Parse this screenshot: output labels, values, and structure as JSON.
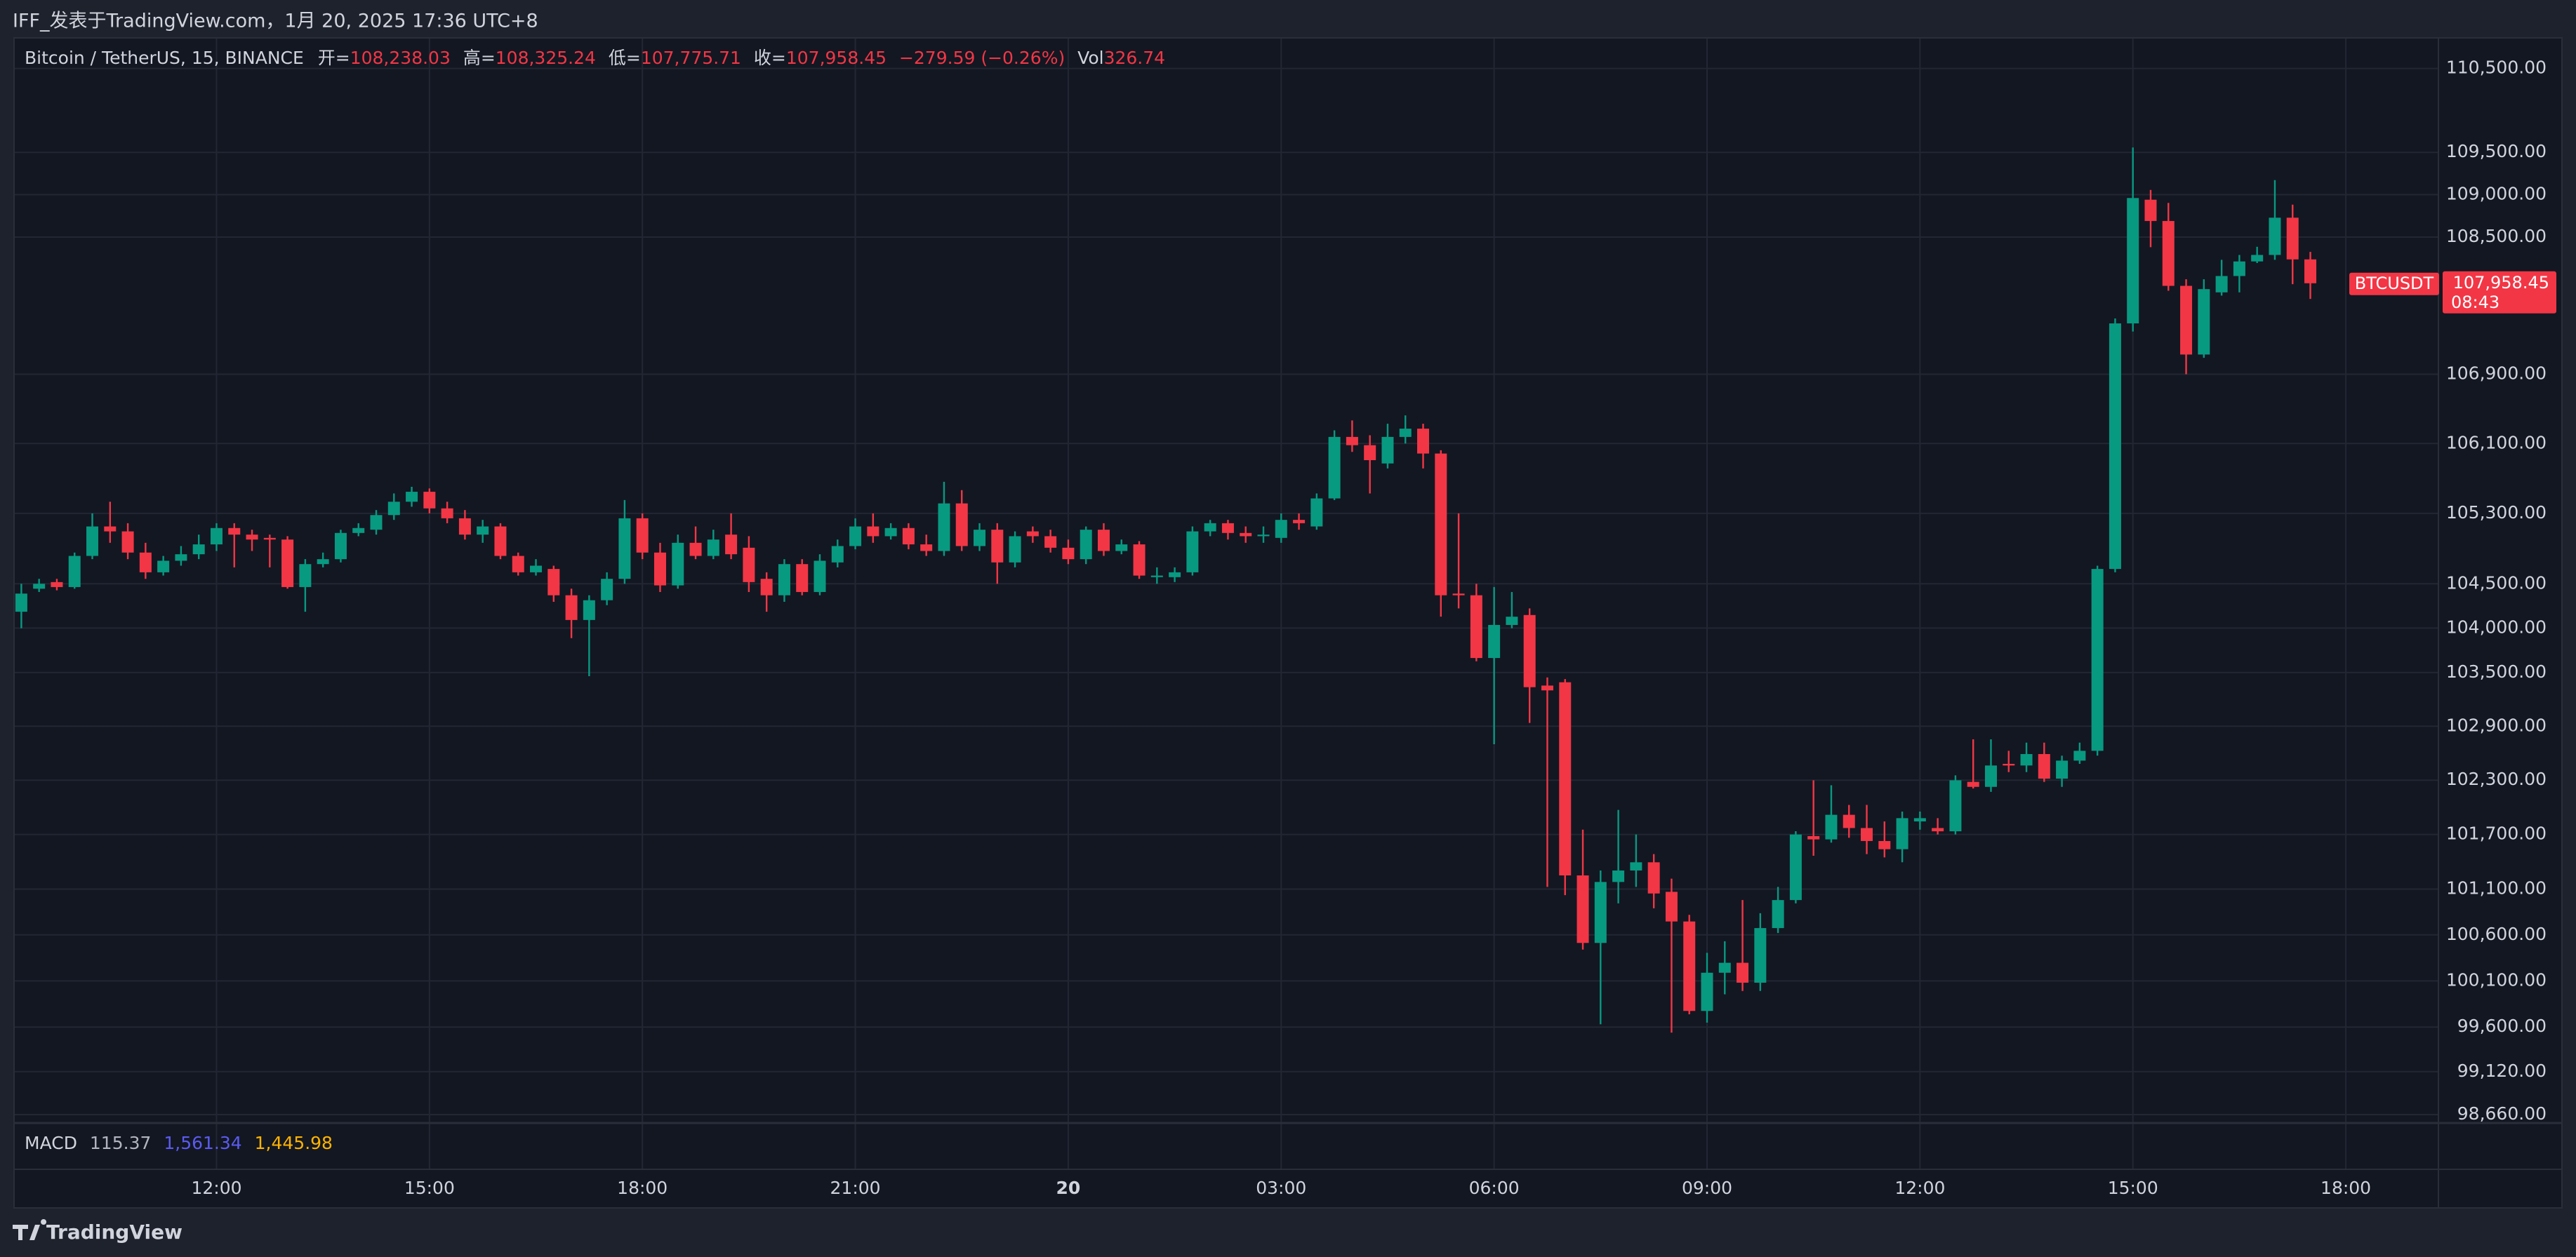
{
  "header": {
    "title": "IFF_发表于TradingView.com，1月 20, 2025 17:36 UTC+8"
  },
  "chart_data": {
    "type": "candlestick",
    "symbol": "Bitcoin / TetherUS, 15, BINANCE",
    "ohlc_labels": [
      {
        "key": "开=",
        "text": "108,238.03"
      },
      {
        "key": "高=",
        "text": "108,325.24"
      },
      {
        "key": "低=",
        "text": "107,775.71"
      },
      {
        "key": "收=",
        "text": "107,958.45"
      }
    ],
    "change": "−279.59 (−0.26%)",
    "volume": {
      "key": "Vol",
      "text": "326.74"
    },
    "up_color": "#089981",
    "down_color": "#f23645",
    "log_scale": true,
    "grid": true,
    "ylim": [
      98570,
      110850
    ],
    "yticks": [
      {
        "value": 110500,
        "label": "110,500.00"
      },
      {
        "value": 109500,
        "label": "109,500.00"
      },
      {
        "value": 109000,
        "label": "109,000.00"
      },
      {
        "value": 108500,
        "label": "108,500.00"
      },
      {
        "value": 106900,
        "label": "106,900.00"
      },
      {
        "value": 106100,
        "label": "106,100.00"
      },
      {
        "value": 105300,
        "label": "105,300.00"
      },
      {
        "value": 104500,
        "label": "104,500.00"
      },
      {
        "value": 104000,
        "label": "104,000.00"
      },
      {
        "value": 103500,
        "label": "103,500.00"
      },
      {
        "value": 102900,
        "label": "102,900.00"
      },
      {
        "value": 102300,
        "label": "102,300.00"
      },
      {
        "value": 101700,
        "label": "101,700.00"
      },
      {
        "value": 101100,
        "label": "101,100.00"
      },
      {
        "value": 100600,
        "label": "100,600.00"
      },
      {
        "value": 100100,
        "label": "100,100.00"
      },
      {
        "value": 99600,
        "label": "99,600.00"
      },
      {
        "value": 99120,
        "label": "99,120.00"
      },
      {
        "value": 98660,
        "label": "98,660.00"
      }
    ],
    "xticks": [
      {
        "value": "12:00",
        "label": "12:00"
      },
      {
        "value": "15:00",
        "label": "15:00"
      },
      {
        "value": "18:00",
        "label": "18:00"
      },
      {
        "value": "21:00",
        "label": "21:00"
      },
      {
        "value": "00:00",
        "label": "20"
      },
      {
        "value": "03:00",
        "label": "03:00"
      },
      {
        "value": "06:00",
        "label": "06:00"
      },
      {
        "value": "09:00",
        "label": "09:00"
      },
      {
        "value": "12:00",
        "label": "12:00"
      },
      {
        "value": "15:00",
        "label": "15:00"
      },
      {
        "value": "18:00",
        "label": "18:00"
      }
    ],
    "x": [
      "09:15",
      "09:30",
      "09:45",
      "10:00",
      "10:15",
      "10:30",
      "10:45",
      "11:00",
      "11:15",
      "11:30",
      "11:45",
      "12:00",
      "12:15",
      "12:30",
      "12:45",
      "13:00",
      "13:15",
      "13:30",
      "13:45",
      "14:00",
      "14:15",
      "14:30",
      "14:45",
      "15:00",
      "15:15",
      "15:30",
      "15:45",
      "16:00",
      "16:15",
      "16:30",
      "16:45",
      "17:00",
      "17:15",
      "17:30",
      "17:45",
      "18:00",
      "18:15",
      "18:30",
      "18:45",
      "19:00",
      "19:15",
      "19:30",
      "19:45",
      "20:00",
      "20:15",
      "20:30",
      "20:45",
      "21:00",
      "21:15",
      "21:30",
      "21:45",
      "22:00",
      "22:15",
      "22:30",
      "22:45",
      "23:00",
      "23:15",
      "23:30",
      "23:45",
      "00:00",
      "00:15",
      "00:30",
      "00:45",
      "01:00",
      "01:15",
      "01:30",
      "01:45",
      "02:00",
      "02:15",
      "02:30",
      "02:45",
      "03:00",
      "03:15",
      "03:30",
      "03:45",
      "04:00",
      "04:15",
      "04:30",
      "04:45",
      "05:00",
      "05:15",
      "05:30",
      "05:45",
      "06:00",
      "06:15",
      "06:30",
      "06:45",
      "07:00",
      "07:15",
      "07:30",
      "07:45",
      "08:00",
      "08:15",
      "08:30",
      "08:45",
      "09:00",
      "09:15",
      "09:30",
      "09:45",
      "10:00",
      "10:15",
      "10:30",
      "10:45",
      "11:00",
      "11:15",
      "11:30",
      "11:45",
      "12:00",
      "12:15",
      "12:30",
      "12:45",
      "13:00",
      "13:15",
      "13:30",
      "13:45",
      "14:00",
      "14:15",
      "14:30",
      "14:45",
      "15:00",
      "15:15",
      "15:30",
      "15:45",
      "16:00",
      "16:15",
      "16:30",
      "16:45",
      "17:00",
      "17:15",
      "17:30"
    ],
    "open": [
      104184,
      104444,
      104519,
      104463,
      104816,
      105151,
      105095,
      104854,
      104630,
      104761,
      104835,
      104947,
      105133,
      105058,
      105021,
      105002,
      104463,
      104723,
      104779,
      105077,
      105114,
      105281,
      105433,
      105547,
      105357,
      105244,
      105058,
      105151,
      104816,
      104630,
      104668,
      104370,
      104091,
      104314,
      104556,
      105244,
      104854,
      104482,
      104965,
      104816,
      105058,
      104909,
      104556,
      104370,
      104723,
      104407,
      104742,
      104928,
      105151,
      105040,
      105133,
      104947,
      104872,
      105414,
      104928,
      105114,
      104742,
      105095,
      105040,
      104909,
      104779,
      105114,
      104872,
      104947,
      104575,
      104575,
      104630,
      105095,
      105188,
      105077,
      105040,
      105021,
      105226,
      105151,
      105471,
      106176,
      106081,
      105871,
      106176,
      106271,
      105985,
      104389,
      104370,
      103663,
      104035,
      104147,
      103354,
      103391,
      101250,
      100512,
      101178,
      101304,
      101394,
      101070,
      100746,
      99774,
      100188,
      100296,
      100080,
      100674,
      100980,
      101682,
      101646,
      101917,
      101771,
      101628,
      101538,
      101844,
      101771,
      101735,
      102281,
      102226,
      102481,
      102463,
      102590,
      102317,
      102517,
      102626,
      104668,
      107490,
      108940,
      108689,
      107928,
      107128,
      107852,
      108043,
      108214,
      108290,
      108728,
      108238.03
    ],
    "high": [
      104500,
      104556,
      104556,
      104854,
      105300,
      105433,
      105188,
      104965,
      104816,
      104928,
      105058,
      105188,
      105188,
      105114,
      105058,
      105040,
      104779,
      104854,
      105114,
      105188,
      105338,
      105528,
      105604,
      105585,
      105433,
      105338,
      105226,
      105188,
      104854,
      104779,
      104705,
      104444,
      104370,
      104630,
      105452,
      105300,
      104965,
      105058,
      105151,
      105114,
      105300,
      105040,
      104630,
      104779,
      104779,
      104835,
      105002,
      105244,
      105300,
      105188,
      105188,
      105058,
      105661,
      105566,
      105188,
      105188,
      105095,
      105151,
      105114,
      105002,
      105151,
      105188,
      105002,
      104984,
      104686,
      104686,
      105151,
      105226,
      105226,
      105151,
      105151,
      105300,
      105300,
      105528,
      106252,
      106366,
      106195,
      106328,
      106424,
      106328,
      106023,
      105300,
      104500,
      104463,
      104407,
      104221,
      103445,
      103427,
      101753,
      101304,
      101971,
      101700,
      101484,
      101214,
      100818,
      100404,
      100530,
      100980,
      100836,
      101124,
      101736,
      102299,
      102244,
      102026,
      102026,
      101844,
      101953,
      101953,
      101880,
      102353,
      102754,
      102754,
      102626,
      102717,
      102717,
      102572,
      102717,
      104705,
      107547,
      109558,
      109056,
      108902,
      108005,
      108005,
      108233,
      108290,
      108386,
      109172,
      108882,
      108325.24
    ],
    "low": [
      103998,
      104407,
      104426,
      104444,
      104779,
      104965,
      104779,
      104556,
      104593,
      104705,
      104779,
      104872,
      104686,
      104872,
      104686,
      104444,
      104184,
      104686,
      104742,
      105040,
      105058,
      105226,
      105376,
      105300,
      105188,
      105002,
      104965,
      104779,
      104593,
      104593,
      104296,
      103886,
      103459,
      104258,
      104500,
      104779,
      104407,
      104444,
      104779,
      104779,
      104779,
      104407,
      104184,
      104296,
      104370,
      104370,
      104686,
      104891,
      104965,
      105002,
      104891,
      104816,
      104816,
      104872,
      104872,
      104500,
      104686,
      104965,
      104854,
      104723,
      104723,
      104816,
      104835,
      104556,
      104500,
      104519,
      104593,
      105040,
      105002,
      104965,
      104965,
      104965,
      105114,
      105114,
      105452,
      106004,
      105528,
      105814,
      106100,
      105814,
      104128,
      104221,
      103626,
      102699,
      103998,
      102936,
      101124,
      101034,
      100440,
      99630,
      100944,
      101124,
      100890,
      99540,
      99738,
      99648,
      99954,
      99990,
      99990,
      100620,
      100944,
      101466,
      101610,
      101664,
      101484,
      101448,
      101394,
      101753,
      101700,
      101700,
      102208,
      102171,
      102390,
      102390,
      102281,
      102226,
      102481,
      102572,
      104630,
      107395,
      108381,
      107871,
      106900,
      107090,
      107814,
      107852,
      108195,
      108233,
      107948,
      107775.71
    ],
    "close": [
      104389,
      104500,
      104463,
      104816,
      105151,
      105095,
      104854,
      104630,
      104761,
      104835,
      104947,
      105133,
      105058,
      105002,
      105002,
      104463,
      104723,
      104779,
      105077,
      105133,
      105281,
      105433,
      105547,
      105357,
      105244,
      105058,
      105151,
      104816,
      104630,
      104705,
      104370,
      104091,
      104314,
      104556,
      105244,
      104854,
      104482,
      104965,
      104816,
      105002,
      104835,
      104519,
      104370,
      104723,
      104407,
      104761,
      104928,
      105151,
      105040,
      105133,
      104947,
      104872,
      105414,
      104928,
      105114,
      104742,
      105040,
      105040,
      104909,
      104779,
      105114,
      104872,
      104947,
      104593,
      104593,
      104630,
      105095,
      105188,
      105077,
      105040,
      105058,
      105226,
      105188,
      105471,
      106176,
      106081,
      105909,
      106176,
      106271,
      105985,
      104370,
      104370,
      103663,
      104035,
      104128,
      103336,
      103300,
      101250,
      100512,
      101178,
      101304,
      101394,
      101052,
      100746,
      99774,
      100188,
      100296,
      100080,
      100674,
      100980,
      101700,
      101646,
      101917,
      101771,
      101628,
      101538,
      101880,
      101880,
      101735,
      102299,
      102226,
      102463,
      102463,
      102590,
      102317,
      102517,
      102626,
      104668,
      107490,
      108960,
      108689,
      107928,
      107128,
      107890,
      108043,
      108214,
      108290,
      108728,
      108238,
      107958.45
    ],
    "price_tag": {
      "symbol": "BTCUSDT",
      "price": "107,958.45",
      "countdown": "08:43"
    },
    "macd": {
      "name": "MACD",
      "values": [
        "115.37",
        "1,561.34",
        "1,445.98"
      ],
      "colors": [
        "#b2b5be",
        "#5b5bf0",
        "#ffb300"
      ]
    }
  },
  "footer": {
    "brand": "TradingView"
  }
}
